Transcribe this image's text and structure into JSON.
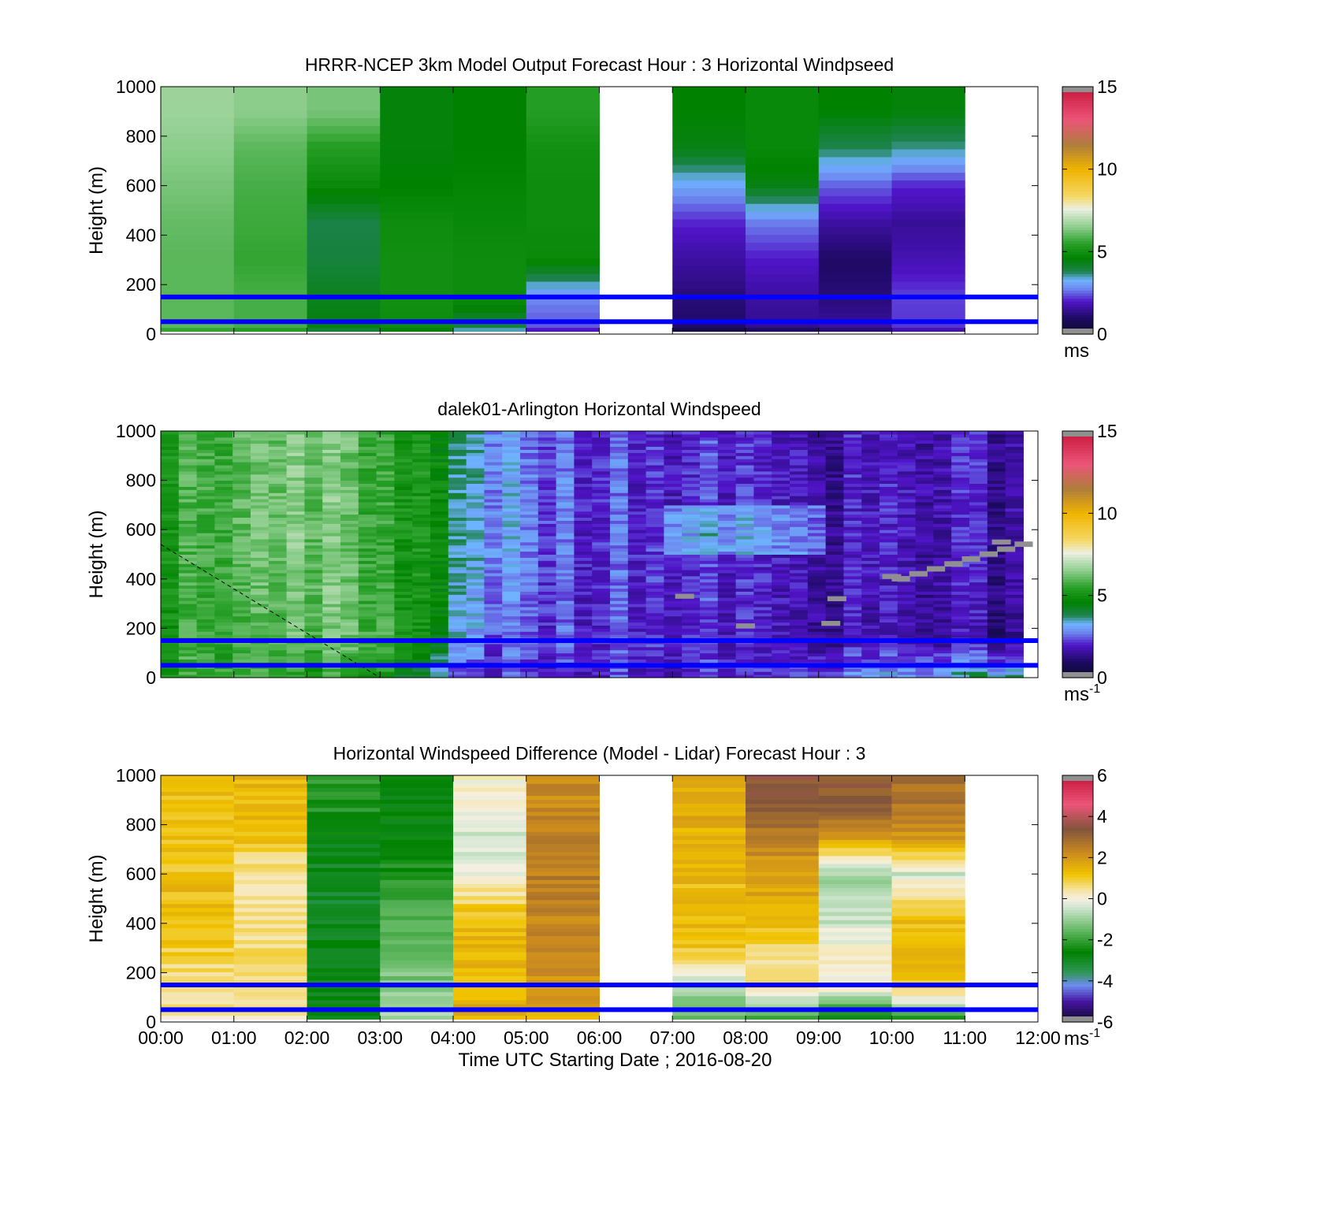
{
  "chart_data": [
    {
      "type": "heatmap",
      "title": "HRRR-NCEP 3km Model Output   Forecast Hour : 3 Horizontal Windpseed",
      "ylabel": "Height (m)",
      "xlabel": "",
      "xlim": [
        "00:00",
        "12:00"
      ],
      "ylim": [
        0,
        1000
      ],
      "yticks": [
        "0",
        "200",
        "400",
        "600",
        "800",
        "1000"
      ],
      "colorbar": {
        "ticks": [
          "0",
          "5",
          "10",
          "15"
        ],
        "range": [
          0,
          15
        ],
        "unit": "ms"
      },
      "reference_lines_height_m": [
        150,
        50
      ],
      "time_columns": [
        "00:00",
        "01:00",
        "02:00",
        "03:00",
        "04:00",
        "05:00",
        "06:00",
        "07:00",
        "08:00",
        "09:00",
        "10:00",
        "11:00"
      ],
      "column_profiles_ms": [
        [
          6.0,
          6.0,
          6.0,
          6.1,
          6.3,
          6.5,
          6.7
        ],
        [
          5.8,
          5.8,
          5.6,
          5.7,
          5.8,
          6.0,
          6.5
        ],
        [
          4.5,
          4.3,
          4.0,
          3.9,
          4.8,
          5.4,
          6.3
        ],
        [
          4.9,
          5.0,
          5.0,
          4.9,
          4.6,
          4.5,
          4.5
        ],
        [
          3.9,
          4.9,
          4.9,
          4.8,
          4.7,
          4.6,
          4.6
        ],
        [
          2.4,
          2.8,
          4.8,
          4.9,
          4.9,
          5.0,
          5.4
        ],
        [
          null,
          null,
          null,
          null,
          null,
          null,
          null
        ],
        [
          1.0,
          1.2,
          1.6,
          2.1,
          3.1,
          4.4,
          4.6
        ],
        [
          1.4,
          1.6,
          2.0,
          2.7,
          4.4,
          4.8,
          4.8
        ],
        [
          1.6,
          1.2,
          1.0,
          1.6,
          2.5,
          3.8,
          4.6
        ],
        [
          2.2,
          2.3,
          1.8,
          1.5,
          2.1,
          3.6,
          4.5
        ],
        [
          null,
          null,
          null,
          null,
          null,
          null,
          null
        ]
      ],
      "profile_heights_m": [
        25,
        150,
        300,
        450,
        600,
        750,
        900
      ]
    },
    {
      "type": "heatmap",
      "title": "dalek01-Arlington  Horizontal Windspeed",
      "ylabel": "Height (m)",
      "xlabel": "",
      "xlim": [
        "00:00",
        "12:00"
      ],
      "ylim": [
        0,
        1000
      ],
      "yticks": [
        "0",
        "200",
        "400",
        "600",
        "800",
        "1000"
      ],
      "colorbar": {
        "ticks": [
          "0",
          "5",
          "10",
          "15"
        ],
        "range": [
          0,
          15
        ],
        "unit": "ms",
        "unit_exponent": "-1"
      },
      "reference_lines_height_m": [
        150,
        50
      ],
      "column_profiles_ms_description_values": {
        "times_h": [
          0,
          1,
          2,
          3,
          3.75,
          4.25,
          5,
          6,
          7,
          8,
          9,
          10,
          11,
          11.8
        ],
        "low_level_ms": [
          5.5,
          5.4,
          5.3,
          5.0,
          3.2,
          2.0,
          2.0,
          2.1,
          2.0,
          2.2,
          2.6,
          3.0,
          3.5,
          3.8
        ],
        "mid_level_ms": [
          5.5,
          5.3,
          6.2,
          5.5,
          4.6,
          2.6,
          2.3,
          2.2,
          2.2,
          2.0,
          1.8,
          1.6,
          1.5,
          1.4
        ],
        "upper_level_ms": [
          5.6,
          5.5,
          6.5,
          5.3,
          4.8,
          3.2,
          2.6,
          2.3,
          2.2,
          2.1,
          1.9,
          1.8,
          1.8,
          1.8
        ]
      },
      "missing_value_segments": [
        {
          "time": "07:10",
          "height_m": 320
        },
        {
          "time": "08:00",
          "height_m": 200
        },
        {
          "time": "09:15",
          "height_m": 310
        },
        {
          "time": "09:10",
          "height_m": 210
        },
        {
          "time": "10:00",
          "height_m": 400
        },
        {
          "time": "11:30",
          "height_m": 540
        }
      ]
    },
    {
      "type": "heatmap",
      "title": "Horizontal Windspeed Difference (Model - Lidar) Forecast Hour : 3",
      "ylabel": "Height (m)",
      "xlabel": "Time UTC  Starting Date ; 2016-08-20",
      "xlim": [
        "00:00",
        "12:00"
      ],
      "xticks": [
        "00:00",
        "01:00",
        "02:00",
        "03:00",
        "04:00",
        "05:00",
        "06:00",
        "07:00",
        "08:00",
        "09:00",
        "10:00",
        "11:00",
        "12:00"
      ],
      "ylim": [
        0,
        1000
      ],
      "yticks": [
        "0",
        "200",
        "400",
        "600",
        "800",
        "1000"
      ],
      "colorbar": {
        "ticks": [
          "-6",
          "-4",
          "-2",
          "0",
          "2",
          "4",
          "6"
        ],
        "range": [
          -6,
          6
        ],
        "unit": "ms",
        "unit_exponent": "-1"
      },
      "reference_lines_height_m": [
        150,
        50
      ],
      "column_profiles_ms": [
        [
          0.4,
          0.4,
          1.0,
          1.3,
          1.2,
          1.1,
          1.2
        ],
        [
          0.5,
          0.5,
          0.6,
          0.4,
          0.4,
          1.2,
          1.4
        ],
        [
          -2.6,
          -2.8,
          -2.9,
          -3.0,
          -3.0,
          -2.7,
          -2.2
        ],
        [
          -0.6,
          -1.2,
          -1.4,
          -1.6,
          -2.2,
          -2.6,
          -2.8
        ],
        [
          1.7,
          1.4,
          1.4,
          1.2,
          -0.2,
          -0.5,
          0.1
        ],
        [
          1.7,
          2.0,
          2.2,
          2.4,
          2.5,
          2.4,
          2.2
        ],
        [
          null,
          null,
          null,
          null,
          null,
          null,
          null
        ],
        [
          -1.2,
          -0.8,
          1.2,
          1.4,
          1.3,
          1.5,
          1.7
        ],
        [
          -1.6,
          0.7,
          0.6,
          1.6,
          1.7,
          2.6,
          3.4
        ],
        [
          -2.5,
          0.2,
          0.0,
          -0.6,
          -0.8,
          2.0,
          3.3
        ],
        [
          -1.9,
          1.2,
          1.3,
          1.2,
          -0.4,
          2.0,
          2.8
        ],
        [
          null,
          null,
          null,
          null,
          null,
          null,
          null
        ]
      ],
      "profile_heights_m": [
        25,
        150,
        300,
        450,
        600,
        750,
        900
      ]
    }
  ],
  "colors": {
    "reference_line": "#0000ff",
    "missing": "#909090"
  }
}
